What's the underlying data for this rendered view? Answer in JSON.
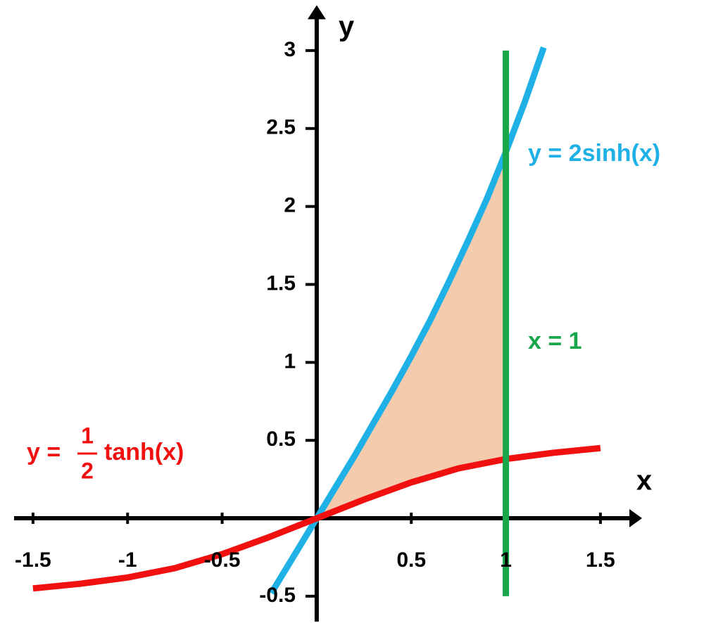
{
  "chart_data": {
    "type": "function-plot",
    "x_label": "x",
    "y_label": "y",
    "xlim": [
      -1.6,
      1.72
    ],
    "ylim": [
      -0.55,
      3.3
    ],
    "xticks": [
      -1.5,
      -1,
      -0.5,
      0.5,
      1,
      1.5
    ],
    "yticks": [
      -0.5,
      0.5,
      1,
      1.5,
      2,
      2.5,
      3
    ],
    "series": [
      {
        "label": {
          "text": "y = 2sinh(x)"
        },
        "color": "#1fb0e6",
        "x": [
          -0.24,
          -0.1,
          0,
          0.1,
          0.2,
          0.3,
          0.4,
          0.5,
          0.6,
          0.7,
          0.8,
          0.9,
          1,
          1.1,
          1.2
        ],
        "values": [
          -0.48,
          -0.2,
          0,
          0.2,
          0.4,
          0.61,
          0.82,
          1.04,
          1.27,
          1.52,
          1.78,
          2.05,
          2.35,
          2.67,
          3.02
        ]
      },
      {
        "label": {
          "prefix": "y =",
          "numerator": "1",
          "denominator": "2",
          "suffix": "tanh(x)"
        },
        "color": "#f01010",
        "x": [
          -1.5,
          -1.25,
          -1,
          -0.75,
          -0.5,
          -0.25,
          0,
          0.25,
          0.5,
          0.75,
          1,
          1.25,
          1.5
        ],
        "values": [
          -0.45,
          -0.42,
          -0.38,
          -0.32,
          -0.23,
          -0.12,
          0,
          0.12,
          0.23,
          0.32,
          0.38,
          0.42,
          0.45
        ]
      },
      {
        "label": {
          "text": "x = 1"
        },
        "color": "#1aa64a",
        "x": [
          1,
          1
        ],
        "values": [
          -0.5,
          3
        ]
      }
    ],
    "shade": {
      "color": "#f5cbad",
      "from": 0,
      "to": 1
    }
  }
}
